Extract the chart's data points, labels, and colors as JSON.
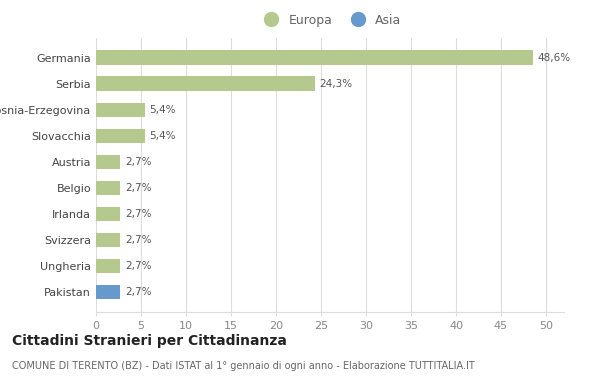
{
  "categories": [
    "Germania",
    "Serbia",
    "Bosnia-Erzegovina",
    "Slovacchia",
    "Austria",
    "Belgio",
    "Irlanda",
    "Svizzera",
    "Ungheria",
    "Pakistan"
  ],
  "values": [
    48.6,
    24.3,
    5.4,
    5.4,
    2.7,
    2.7,
    2.7,
    2.7,
    2.7,
    2.7
  ],
  "labels": [
    "48,6%",
    "24,3%",
    "5,4%",
    "5,4%",
    "2,7%",
    "2,7%",
    "2,7%",
    "2,7%",
    "2,7%",
    "2,7%"
  ],
  "colors": [
    "#b5c98e",
    "#b5c98e",
    "#b5c98e",
    "#b5c98e",
    "#b5c98e",
    "#b5c98e",
    "#b5c98e",
    "#b5c98e",
    "#b5c98e",
    "#6699cc"
  ],
  "europa_color": "#b5c98e",
  "asia_color": "#6699cc",
  "xlim": [
    0,
    52
  ],
  "xticks": [
    0,
    5,
    10,
    15,
    20,
    25,
    30,
    35,
    40,
    45,
    50
  ],
  "title": "Cittadini Stranieri per Cittadinanza",
  "subtitle": "COMUNE DI TERENTO (BZ) - Dati ISTAT al 1° gennaio di ogni anno - Elaborazione TUTTITALIA.IT",
  "background_color": "#ffffff",
  "grid_color": "#dddddd",
  "bar_height": 0.55,
  "legend_europa": "Europa",
  "legend_asia": "Asia"
}
